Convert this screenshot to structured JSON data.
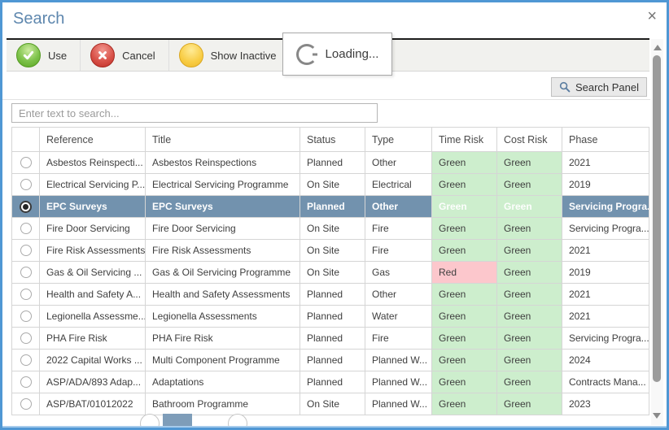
{
  "window": {
    "title": "Search",
    "close_label": "×"
  },
  "toolbar": {
    "use_label": "Use",
    "cancel_label": "Cancel",
    "show_inactive_label": "Show Inactive"
  },
  "loading_popup": {
    "label": "Loading..."
  },
  "search_panel_button": {
    "label": "Search Panel"
  },
  "search_input": {
    "placeholder": "Enter text to search...",
    "value": ""
  },
  "icons": {
    "use": "green-check-circle",
    "cancel": "red-x-circle",
    "show_inactive": "yellow-circle",
    "search_panel": "magnifier",
    "loading": "spinner",
    "close": "x"
  },
  "table": {
    "columns": [
      "",
      "Reference",
      "Title",
      "Status",
      "Type",
      "Time Risk",
      "Cost Risk",
      "Phase"
    ],
    "selected_row_index": 2,
    "rows": [
      {
        "reference": "Asbestos Reinspecti...",
        "title": "Asbestos Reinspections",
        "status": "Planned",
        "type": "Other",
        "time_risk": "Green",
        "cost_risk": "Green",
        "phase": "2021",
        "selected": false
      },
      {
        "reference": "Electrical Servicing P...",
        "title": "Electrical Servicing Programme",
        "status": "On Site",
        "type": "Electrical",
        "time_risk": "Green",
        "cost_risk": "Green",
        "phase": "2019",
        "selected": false
      },
      {
        "reference": "EPC Surveys",
        "title": "EPC Surveys",
        "status": "Planned",
        "type": "Other",
        "time_risk": "Green",
        "cost_risk": "Green",
        "phase": "Servicing Progra...",
        "selected": true
      },
      {
        "reference": "Fire Door Servicing",
        "title": "Fire Door Servicing",
        "status": "On Site",
        "type": "Fire",
        "time_risk": "Green",
        "cost_risk": "Green",
        "phase": "Servicing Progra...",
        "selected": false
      },
      {
        "reference": "Fire Risk Assessments",
        "title": "Fire Risk Assessments",
        "status": "On Site",
        "type": "Fire",
        "time_risk": "Green",
        "cost_risk": "Green",
        "phase": "2021",
        "selected": false
      },
      {
        "reference": "Gas & Oil Servicing ...",
        "title": "Gas & Oil Servicing Programme",
        "status": "On Site",
        "type": "Gas",
        "time_risk": "Red",
        "cost_risk": "Green",
        "phase": "2019",
        "selected": false
      },
      {
        "reference": "Health and Safety A...",
        "title": "Health and Safety Assessments",
        "status": "Planned",
        "type": "Other",
        "time_risk": "Green",
        "cost_risk": "Green",
        "phase": "2021",
        "selected": false
      },
      {
        "reference": "Legionella Assessme...",
        "title": "Legionella Assessments",
        "status": "Planned",
        "type": "Water",
        "time_risk": "Green",
        "cost_risk": "Green",
        "phase": "2021",
        "selected": false
      },
      {
        "reference": "PHA Fire Risk",
        "title": "PHA Fire Risk",
        "status": "Planned",
        "type": "Fire",
        "time_risk": "Green",
        "cost_risk": "Green",
        "phase": "Servicing Progra...",
        "selected": false
      },
      {
        "reference": "2022 Capital Works ...",
        "title": "Multi Component Programme",
        "status": "Planned",
        "type": "Planned W...",
        "time_risk": "Green",
        "cost_risk": "Green",
        "phase": "2024",
        "selected": false
      },
      {
        "reference": "ASP/ADA/893 Adap...",
        "title": "Adaptations",
        "status": "Planned",
        "type": "Planned W...",
        "time_risk": "Green",
        "cost_risk": "Green",
        "phase": "Contracts Mana...",
        "selected": false
      },
      {
        "reference": "ASP/BAT/01012022",
        "title": "Bathroom Programme",
        "status": "On Site",
        "type": "Planned W...",
        "time_risk": "Green",
        "cost_risk": "Green",
        "phase": "2023",
        "selected": false
      }
    ]
  },
  "colors": {
    "accent_border": "#4f97d4",
    "title_text": "#5e87ae",
    "selected_row": "#7292ae",
    "risk_green_bg": "#cdeecd",
    "risk_red_bg": "#fcc7cc",
    "toolbar_bg": "#f1f1ee"
  }
}
